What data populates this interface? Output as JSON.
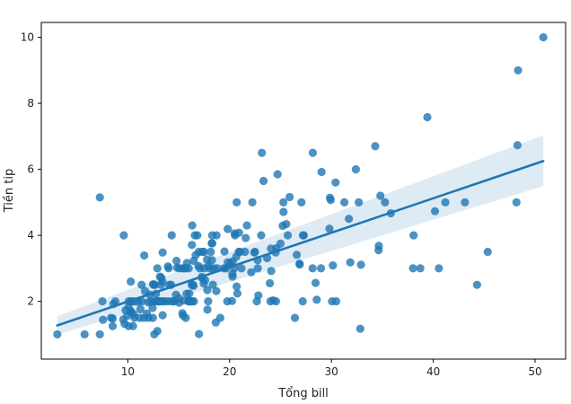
{
  "chart_data": {
    "type": "scatter",
    "title": "",
    "xlabel": "Tổng bill",
    "ylabel": "Tiền tip",
    "xlim": [
      1.5,
      53.0
    ],
    "ylim": [
      0.25,
      10.45
    ],
    "xticks": [
      10,
      20,
      30,
      40,
      50
    ],
    "yticks": [
      2,
      4,
      6,
      8,
      10
    ],
    "grid": false,
    "legend": "none",
    "colors": {
      "points": "#1f77b4",
      "line": "#1f77b4",
      "band": "#1f77b4"
    },
    "regression": {
      "x": [
        3.07,
        50.81
      ],
      "y": [
        1.27,
        6.25
      ],
      "ci_upper_y": [
        1.55,
        7.03
      ],
      "ci_lower_y": [
        0.99,
        5.49
      ]
    },
    "points": [
      [
        3.07,
        1.0
      ],
      [
        5.75,
        1.0
      ],
      [
        7.25,
        1.0
      ],
      [
        7.25,
        5.15
      ],
      [
        7.5,
        2.0
      ],
      [
        7.56,
        1.44
      ],
      [
        8.35,
        1.5
      ],
      [
        8.51,
        1.25
      ],
      [
        8.52,
        1.48
      ],
      [
        8.58,
        1.92
      ],
      [
        8.77,
        2.0
      ],
      [
        9.55,
        1.45
      ],
      [
        9.6,
        4.0
      ],
      [
        9.68,
        1.32
      ],
      [
        9.78,
        1.73
      ],
      [
        9.94,
        1.56
      ],
      [
        10.07,
        1.25
      ],
      [
        10.07,
        1.83
      ],
      [
        10.09,
        2.0
      ],
      [
        10.27,
        1.71
      ],
      [
        10.29,
        2.6
      ],
      [
        10.33,
        1.67
      ],
      [
        10.33,
        2.0
      ],
      [
        10.34,
        1.66
      ],
      [
        10.34,
        2.0
      ],
      [
        10.51,
        1.25
      ],
      [
        10.59,
        1.61
      ],
      [
        10.63,
        2.0
      ],
      [
        10.65,
        1.5
      ],
      [
        11.02,
        1.98
      ],
      [
        11.17,
        1.5
      ],
      [
        11.24,
        1.76
      ],
      [
        11.35,
        2.5
      ],
      [
        11.38,
        2.0
      ],
      [
        11.59,
        1.5
      ],
      [
        11.61,
        3.39
      ],
      [
        11.69,
        2.31
      ],
      [
        11.87,
        1.63
      ],
      [
        12.02,
        1.97
      ],
      [
        12.03,
        1.5
      ],
      [
        12.16,
        2.2
      ],
      [
        12.26,
        2.0
      ],
      [
        12.43,
        1.8
      ],
      [
        12.46,
        1.5
      ],
      [
        12.48,
        2.52
      ],
      [
        12.54,
        2.5
      ],
      [
        12.6,
        1.0
      ],
      [
        12.66,
        2.5
      ],
      [
        12.69,
        2.0
      ],
      [
        12.74,
        2.01
      ],
      [
        12.76,
        2.23
      ],
      [
        12.9,
        1.1
      ],
      [
        12.9,
        3.0
      ],
      [
        13.0,
        2.0
      ],
      [
        13.03,
        2.0
      ],
      [
        13.13,
        2.0
      ],
      [
        13.16,
        2.75
      ],
      [
        13.27,
        2.5
      ],
      [
        13.28,
        2.72
      ],
      [
        13.37,
        2.0
      ],
      [
        13.39,
        2.61
      ],
      [
        13.42,
        1.58
      ],
      [
        13.42,
        3.48
      ],
      [
        13.51,
        2.0
      ],
      [
        13.81,
        2.0
      ],
      [
        13.94,
        3.06
      ],
      [
        14.0,
        3.0
      ],
      [
        14.07,
        2.5
      ],
      [
        14.15,
        2.0
      ],
      [
        14.26,
        2.5
      ],
      [
        14.31,
        4.0
      ],
      [
        14.48,
        2.0
      ],
      [
        14.52,
        2.0
      ],
      [
        14.73,
        2.2
      ],
      [
        14.78,
        3.23
      ],
      [
        14.83,
        3.02
      ],
      [
        15.01,
        2.09
      ],
      [
        15.04,
        1.96
      ],
      [
        15.06,
        3.0
      ],
      [
        15.36,
        1.64
      ],
      [
        15.38,
        3.0
      ],
      [
        15.42,
        1.57
      ],
      [
        15.48,
        2.02
      ],
      [
        15.53,
        3.0
      ],
      [
        15.69,
        1.5
      ],
      [
        15.69,
        3.0
      ],
      [
        15.77,
        2.23
      ],
      [
        15.81,
        3.16
      ],
      [
        15.95,
        2.0
      ],
      [
        15.98,
        2.03
      ],
      [
        15.98,
        3.0
      ],
      [
        16.0,
        2.0
      ],
      [
        16.04,
        2.24
      ],
      [
        16.21,
        2.0
      ],
      [
        16.27,
        2.5
      ],
      [
        16.29,
        3.71
      ],
      [
        16.31,
        2.0
      ],
      [
        16.32,
        4.3
      ],
      [
        16.4,
        2.5
      ],
      [
        16.45,
        2.47
      ],
      [
        16.47,
        3.23
      ],
      [
        16.49,
        2.0
      ],
      [
        16.58,
        4.0
      ],
      [
        16.66,
        3.4
      ],
      [
        16.82,
        4.0
      ],
      [
        16.93,
        3.07
      ],
      [
        16.97,
        3.5
      ],
      [
        16.99,
        1.01
      ],
      [
        17.07,
        3.0
      ],
      [
        17.26,
        2.74
      ],
      [
        17.29,
        2.71
      ],
      [
        17.31,
        3.5
      ],
      [
        17.46,
        2.54
      ],
      [
        17.47,
        3.5
      ],
      [
        17.51,
        3.0
      ],
      [
        17.59,
        2.64
      ],
      [
        17.78,
        3.27
      ],
      [
        17.81,
        2.34
      ],
      [
        17.82,
        1.75
      ],
      [
        17.89,
        2.0
      ],
      [
        17.92,
        3.08
      ],
      [
        18.04,
        3.0
      ],
      [
        18.15,
        3.5
      ],
      [
        18.24,
        3.76
      ],
      [
        18.26,
        3.25
      ],
      [
        18.28,
        4.0
      ],
      [
        18.29,
        3.76
      ],
      [
        18.35,
        2.5
      ],
      [
        18.43,
        3.0
      ],
      [
        18.64,
        1.36
      ],
      [
        18.69,
        2.31
      ],
      [
        18.71,
        4.0
      ],
      [
        18.78,
        3.0
      ],
      [
        19.08,
        1.5
      ],
      [
        19.44,
        3.0
      ],
      [
        19.49,
        3.51
      ],
      [
        19.65,
        3.0
      ],
      [
        19.77,
        2.0
      ],
      [
        19.81,
        4.19
      ],
      [
        19.82,
        3.18
      ],
      [
        20.08,
        3.15
      ],
      [
        20.23,
        2.01
      ],
      [
        20.27,
        2.83
      ],
      [
        20.29,
        2.75
      ],
      [
        20.29,
        3.21
      ],
      [
        20.45,
        3.0
      ],
      [
        20.49,
        4.06
      ],
      [
        20.53,
        4.0
      ],
      [
        20.65,
        3.35
      ],
      [
        20.69,
        2.45
      ],
      [
        20.69,
        5.0
      ],
      [
        20.76,
        2.24
      ],
      [
        20.9,
        3.5
      ],
      [
        20.92,
        4.08
      ],
      [
        21.01,
        3.5
      ],
      [
        21.16,
        3.0
      ],
      [
        21.5,
        3.5
      ],
      [
        21.58,
        3.92
      ],
      [
        21.7,
        4.3
      ],
      [
        22.12,
        2.88
      ],
      [
        22.23,
        5.0
      ],
      [
        22.42,
        3.48
      ],
      [
        22.49,
        3.5
      ],
      [
        22.67,
        2.0
      ],
      [
        22.75,
        3.25
      ],
      [
        22.76,
        3.0
      ],
      [
        22.82,
        2.18
      ],
      [
        23.1,
        4.0
      ],
      [
        23.17,
        6.5
      ],
      [
        23.33,
        5.65
      ],
      [
        23.68,
        3.31
      ],
      [
        23.95,
        2.55
      ],
      [
        24.01,
        2.0
      ],
      [
        24.06,
        3.6
      ],
      [
        24.08,
        2.92
      ],
      [
        24.27,
        2.03
      ],
      [
        24.52,
        3.48
      ],
      [
        24.55,
        2.0
      ],
      [
        24.59,
        3.61
      ],
      [
        24.71,
        5.85
      ],
      [
        25.0,
        3.75
      ],
      [
        25.21,
        4.29
      ],
      [
        25.28,
        5.0
      ],
      [
        25.29,
        4.71
      ],
      [
        25.56,
        4.34
      ],
      [
        25.71,
        4.0
      ],
      [
        25.89,
        5.16
      ],
      [
        26.41,
        1.5
      ],
      [
        26.59,
        3.41
      ],
      [
        26.86,
        3.14
      ],
      [
        26.88,
        3.12
      ],
      [
        27.05,
        5.0
      ],
      [
        27.18,
        2.0
      ],
      [
        27.2,
        4.0
      ],
      [
        27.28,
        4.0
      ],
      [
        28.15,
        3.0
      ],
      [
        28.17,
        6.5
      ],
      [
        28.44,
        2.56
      ],
      [
        28.55,
        2.05
      ],
      [
        28.97,
        3.0
      ],
      [
        29.03,
        5.92
      ],
      [
        29.8,
        4.2
      ],
      [
        29.85,
        5.14
      ],
      [
        29.93,
        5.07
      ],
      [
        30.06,
        2.0
      ],
      [
        30.14,
        3.09
      ],
      [
        30.4,
        5.6
      ],
      [
        30.46,
        2.0
      ],
      [
        31.27,
        5.0
      ],
      [
        31.71,
        4.5
      ],
      [
        31.85,
        3.18
      ],
      [
        32.4,
        6.0
      ],
      [
        32.68,
        5.0
      ],
      [
        32.83,
        1.17
      ],
      [
        32.9,
        3.11
      ],
      [
        34.3,
        6.7
      ],
      [
        34.63,
        3.55
      ],
      [
        34.65,
        3.68
      ],
      [
        34.81,
        5.2
      ],
      [
        35.26,
        5.0
      ],
      [
        35.83,
        4.67
      ],
      [
        38.01,
        3.0
      ],
      [
        38.07,
        4.0
      ],
      [
        38.73,
        3.0
      ],
      [
        39.42,
        7.58
      ],
      [
        40.17,
        4.73
      ],
      [
        40.55,
        3.0
      ],
      [
        41.19,
        5.0
      ],
      [
        43.11,
        5.0
      ],
      [
        44.3,
        2.5
      ],
      [
        45.35,
        3.5
      ],
      [
        48.17,
        5.0
      ],
      [
        48.27,
        6.73
      ],
      [
        48.33,
        9.0
      ],
      [
        50.81,
        10.0
      ]
    ]
  }
}
